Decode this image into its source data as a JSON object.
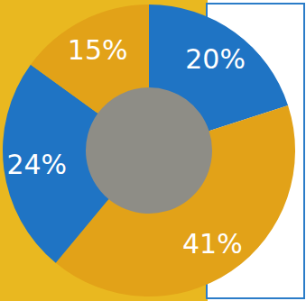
{
  "chart_data": {
    "type": "pie",
    "values": [
      20,
      41,
      24,
      15
    ],
    "value_labels": [
      "20%",
      "41%",
      "24%",
      "15%"
    ],
    "colors": [
      "#1f74c4",
      "#e2a218",
      "#1f74c4",
      "#e2a218"
    ],
    "data_labels": true
  }
}
